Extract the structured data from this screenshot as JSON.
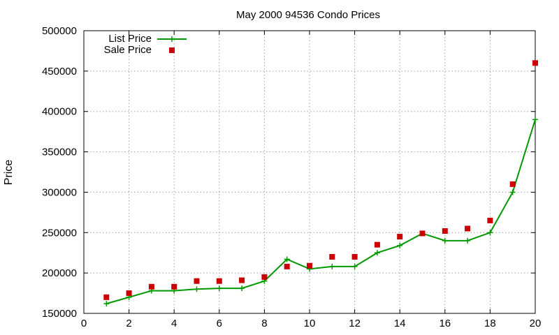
{
  "chart_data": {
    "type": "line",
    "title": "May 2000 94536 Condo Prices",
    "xlabel": "",
    "ylabel": "Price",
    "xlim": [
      0,
      20
    ],
    "ylim": [
      150000,
      500000
    ],
    "x_ticks": [
      0,
      2,
      4,
      6,
      8,
      10,
      12,
      14,
      16,
      18,
      20
    ],
    "y_ticks": [
      150000,
      200000,
      250000,
      300000,
      350000,
      400000,
      450000,
      500000
    ],
    "grid": true,
    "legend_position": "top-left",
    "series": [
      {
        "name": "List Price",
        "style": "line+cross",
        "color": "#009900",
        "x": [
          1,
          2,
          3,
          4,
          5,
          6,
          7,
          8,
          9,
          10,
          11,
          12,
          13,
          14,
          15,
          16,
          17,
          18,
          19,
          20
        ],
        "values": [
          162000,
          170000,
          178000,
          178000,
          180000,
          181000,
          181000,
          190000,
          217000,
          205000,
          208000,
          208000,
          225000,
          234000,
          249000,
          240000,
          240000,
          250000,
          300000,
          390000
        ]
      },
      {
        "name": "Sale Price",
        "style": "square-points",
        "color": "#cc0000",
        "x": [
          1,
          2,
          3,
          4,
          5,
          6,
          7,
          8,
          9,
          10,
          11,
          12,
          13,
          14,
          15,
          16,
          17,
          18,
          19,
          20
        ],
        "values": [
          170000,
          175000,
          183000,
          183000,
          190000,
          190000,
          191000,
          195000,
          208000,
          209000,
          220000,
          220000,
          235000,
          245000,
          249000,
          252000,
          255000,
          265000,
          310000,
          460000
        ]
      }
    ]
  }
}
